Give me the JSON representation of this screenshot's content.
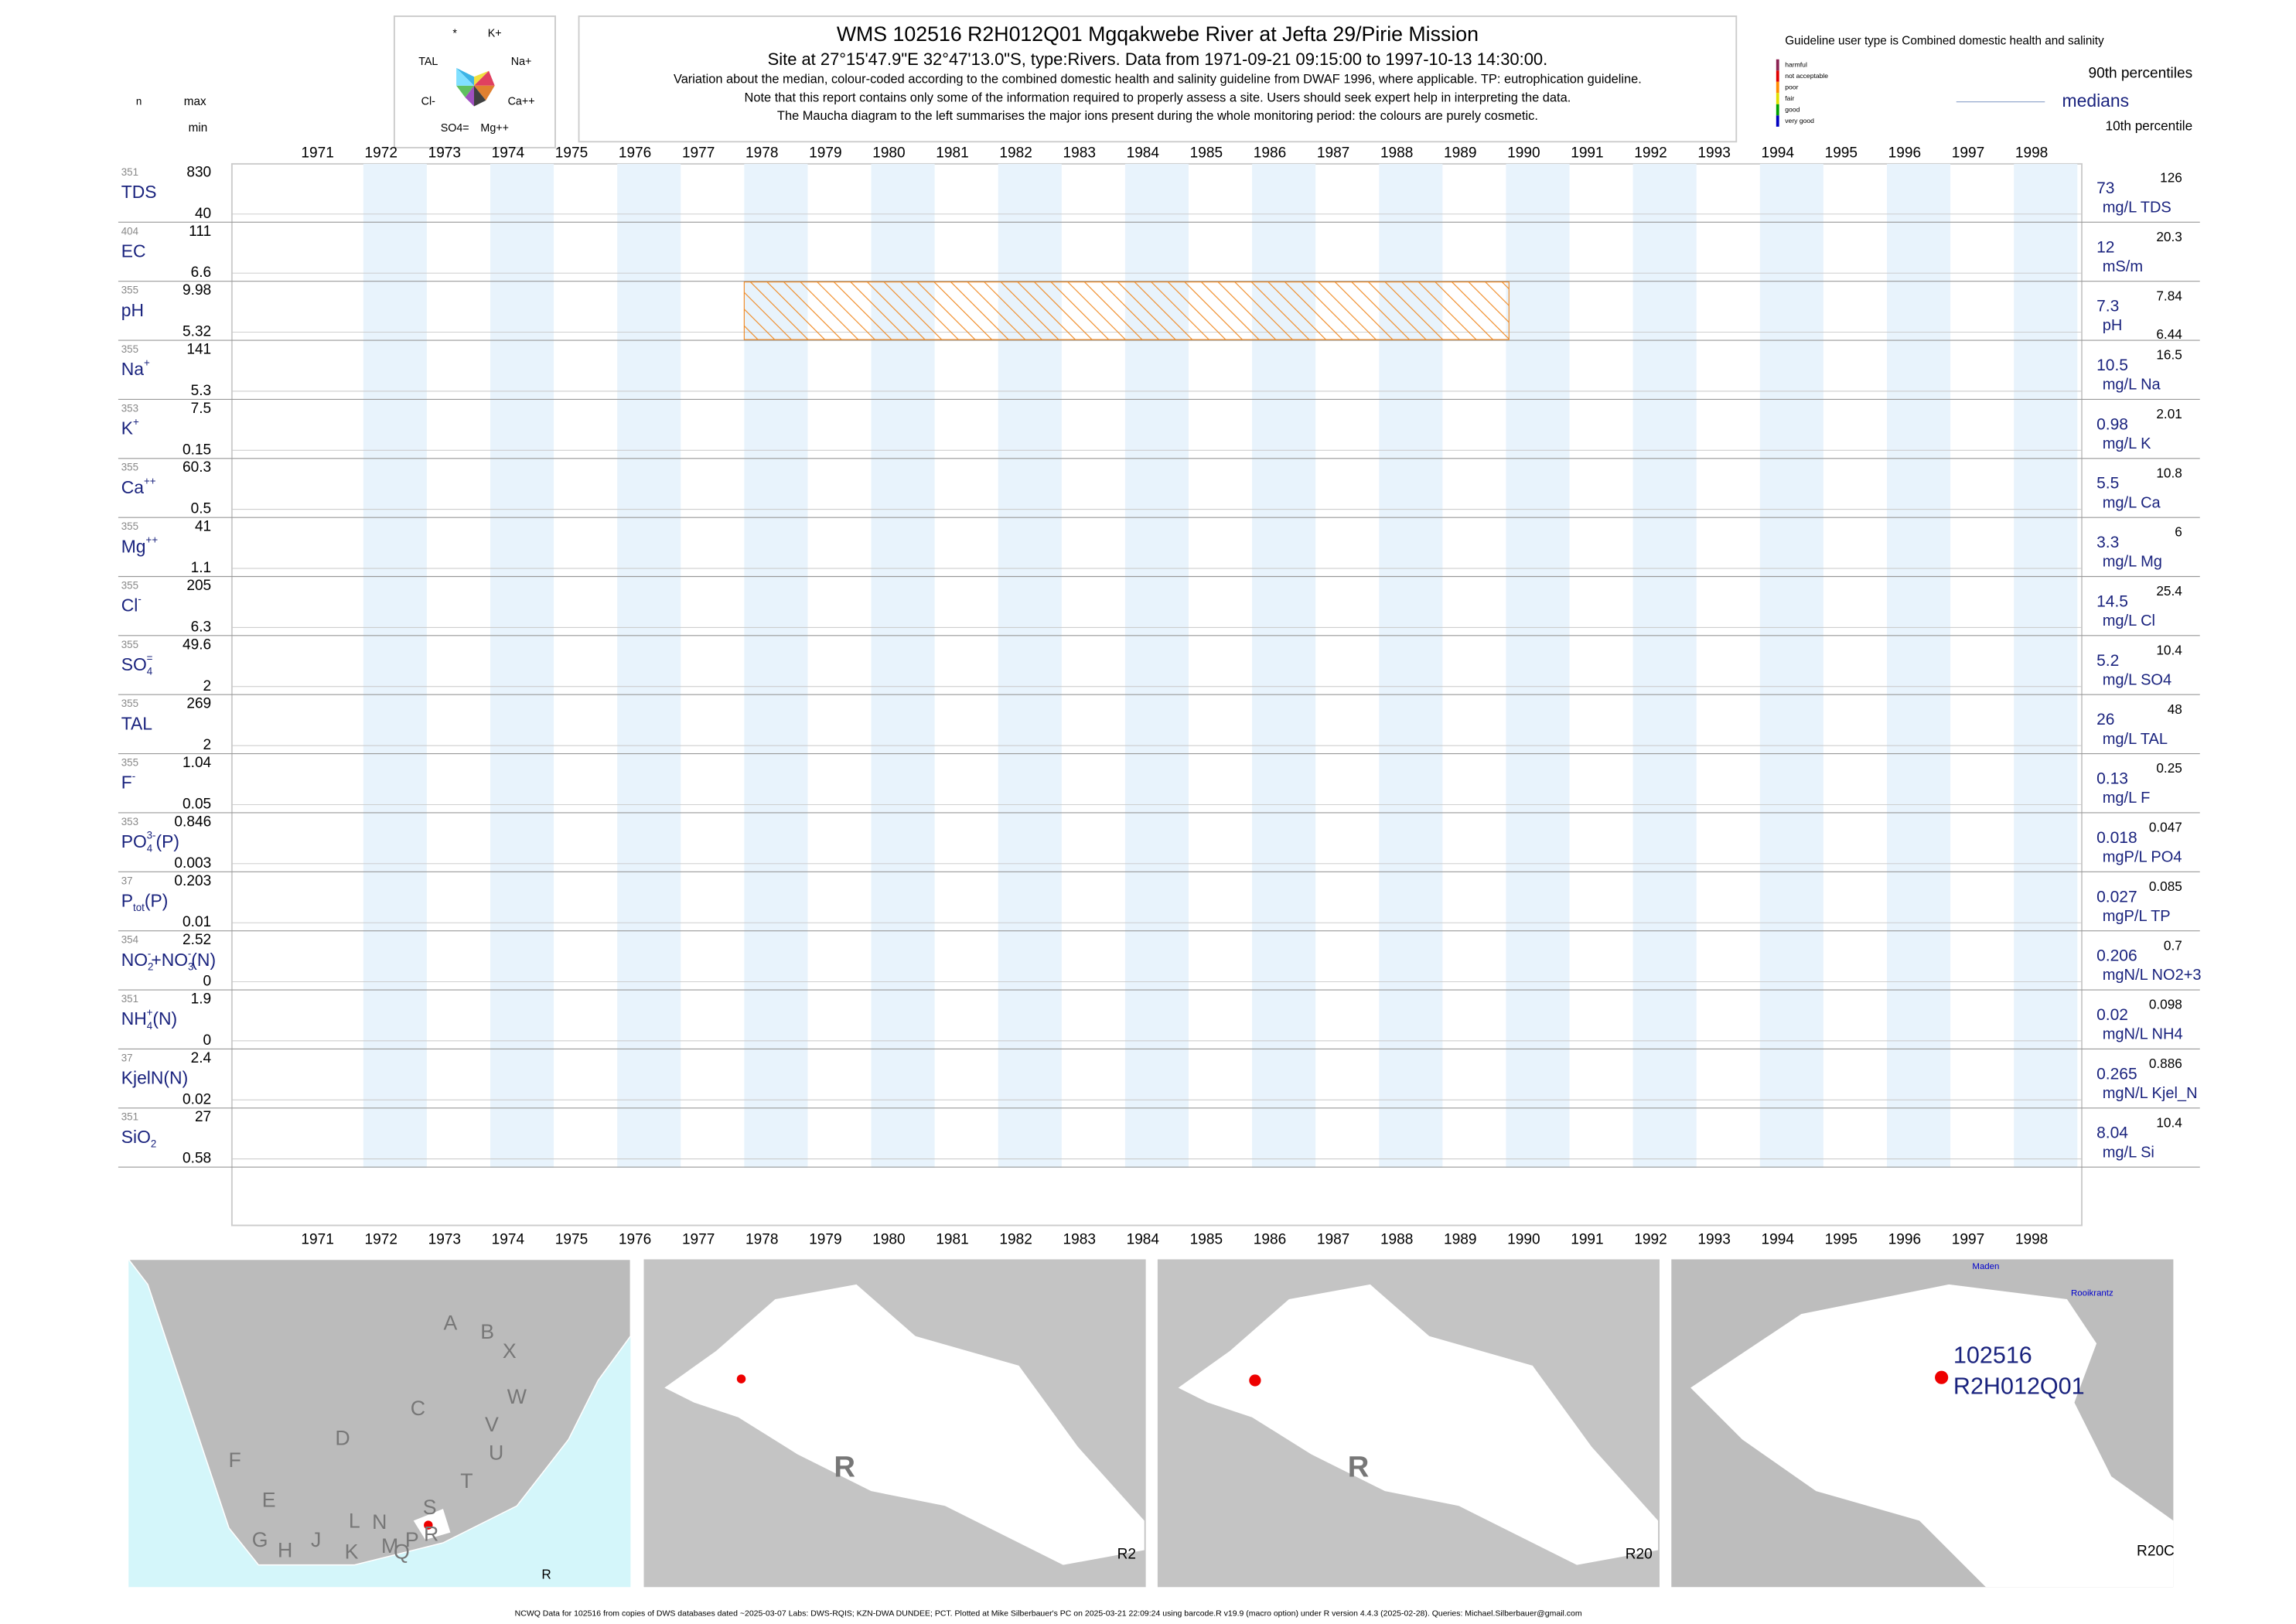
{
  "header": {
    "title": "WMS 102516 R2H012Q01 Mgqakwebe River at Jefta 29/Pirie Mission",
    "subtitle": "Site at 27°15'47.9\"E 32°47'13.0\"S, type:Rivers.  Data from 1971-09-21 09:15:00 to 1997-10-13 14:30:00.",
    "notes": [
      "Variation about the median,  colour-coded according to the combined domestic health and salinity guideline from DWAF 1996, where applicable. TP: eutrophication guideline.",
      "Note that this report contains only some of the information required to properly assess a site. Users should seek expert help in interpreting the data.",
      "The Maucha diagram to the left summarises the major ions present during the whole monitoring period: the colours are purely cosmetic."
    ]
  },
  "column_heads": {
    "n": "n",
    "max": "max",
    "min": "min"
  },
  "maucha": [
    "*",
    "K+",
    "TAL",
    "Na+",
    "Cl-",
    "Ca++",
    "SO4=",
    "Mg++"
  ],
  "legend": {
    "guideline": "Guideline user type is Combined domestic health and salinity",
    "classes": [
      {
        "name": "harmful",
        "color": "#8b2252"
      },
      {
        "name": "not acceptable",
        "color": "#e00000"
      },
      {
        "name": "poor",
        "color": "#ff8c00"
      },
      {
        "name": "fair",
        "color": "#e0e000"
      },
      {
        "name": "good",
        "color": "#00a000"
      },
      {
        "name": "very good",
        "color": "#0000c0"
      }
    ],
    "p90": "90th percentiles",
    "median": "medians",
    "p10": "10th percentile"
  },
  "years": [
    "1971",
    "1972",
    "1973",
    "1974",
    "1975",
    "1976",
    "1977",
    "1978",
    "1979",
    "1980",
    "1981",
    "1982",
    "1983",
    "1984",
    "1985",
    "1986",
    "1987",
    "1988",
    "1989",
    "1990",
    "1991",
    "1992",
    "1993",
    "1994",
    "1995",
    "1996",
    "1997",
    "1998"
  ],
  "panels": [
    {
      "label": [
        {
          "t": "TDS"
        }
      ],
      "n": 351,
      "max": 830,
      "min": 40,
      "median": 73,
      "p90": 126,
      "unit": "mg/L TDS"
    },
    {
      "label": [
        {
          "t": "EC"
        }
      ],
      "n": 404,
      "max": 111,
      "min": 6.6,
      "median": 12,
      "p90": 20.3,
      "unit": "mS/m"
    },
    {
      "label": [
        {
          "t": "pH"
        }
      ],
      "n": 355,
      "max": 9.98,
      "min": 5.32,
      "median": 7.3,
      "p90": 7.84,
      "unit": "pH",
      "p10": 6.44
    },
    {
      "label": [
        {
          "t": "Na"
        },
        {
          "t": "+",
          "sup": true
        }
      ],
      "n": 355,
      "max": 141,
      "min": 5.3,
      "median": 10.5,
      "p90": 16.5,
      "unit": "mg/L Na"
    },
    {
      "label": [
        {
          "t": "K"
        },
        {
          "t": "+",
          "sup": true
        }
      ],
      "n": 353,
      "max": 7.5,
      "min": 0.15,
      "median": 0.98,
      "p90": 2.01,
      "unit": "mg/L K"
    },
    {
      "label": [
        {
          "t": "Ca"
        },
        {
          "t": "++",
          "sup": true
        }
      ],
      "n": 355,
      "max": 60.3,
      "min": 0.5,
      "median": 5.5,
      "p90": 10.8,
      "unit": "mg/L Ca"
    },
    {
      "label": [
        {
          "t": "Mg"
        },
        {
          "t": "++",
          "sup": true
        }
      ],
      "n": 355,
      "max": 41,
      "min": 1.1,
      "median": 3.3,
      "p90": 6,
      "unit": "mg/L Mg"
    },
    {
      "label": [
        {
          "t": "Cl"
        },
        {
          "t": "-",
          "sup": true
        }
      ],
      "n": 355,
      "max": 205,
      "min": 6.3,
      "median": 14.5,
      "p90": 25.4,
      "unit": "mg/L Cl"
    },
    {
      "label": [
        {
          "t": "SO"
        },
        {
          "t": "4",
          "sub": true
        },
        {
          "t": "=",
          "sup": true
        }
      ],
      "n": 355,
      "max": 49.6,
      "min": 2,
      "median": 5.2,
      "p90": 10.4,
      "unit": "mg/L SO4"
    },
    {
      "label": [
        {
          "t": "TAL"
        }
      ],
      "n": 355,
      "max": 269,
      "min": 2,
      "median": 26,
      "p90": 48,
      "unit": "mg/L TAL"
    },
    {
      "label": [
        {
          "t": "F"
        },
        {
          "t": "-",
          "sup": true
        }
      ],
      "n": 355,
      "max": 1.04,
      "min": 0.05,
      "median": 0.13,
      "p90": 0.25,
      "unit": "mg/L F"
    },
    {
      "label": [
        {
          "t": "PO"
        },
        {
          "t": "4",
          "sub": true
        },
        {
          "t": "3-",
          "sup": true
        },
        {
          "t": "(P)"
        }
      ],
      "n": 353,
      "max": 0.846,
      "min": 0.003,
      "median": 0.018,
      "p90": 0.047,
      "unit": "mgP/L PO4"
    },
    {
      "label": [
        {
          "t": "P"
        },
        {
          "t": "tot",
          "sub": true
        },
        {
          "t": "(P)"
        }
      ],
      "n": 37,
      "max": 0.203,
      "min": 0.01,
      "median": 0.027,
      "p90": 0.085,
      "unit": "mgP/L TP"
    },
    {
      "label": [
        {
          "t": "NO"
        },
        {
          "t": "2",
          "sub": true
        },
        {
          "t": "-",
          "sup": true
        },
        {
          "t": "+NO"
        },
        {
          "t": "3",
          "sub": true
        },
        {
          "t": "-",
          "sup": true
        },
        {
          "t": "(N)"
        }
      ],
      "n": 354,
      "max": 2.52,
      "min": 0,
      "median": 0.206,
      "p90": 0.7,
      "unit": "mgN/L NO2+3"
    },
    {
      "label": [
        {
          "t": "NH"
        },
        {
          "t": "4",
          "sub": true
        },
        {
          "t": "+",
          "sup": true
        },
        {
          "t": "(N)"
        }
      ],
      "n": 351,
      "max": 1.9,
      "min": 0,
      "median": 0.02,
      "p90": 0.098,
      "unit": "mgN/L NH4"
    },
    {
      "label": [
        {
          "t": "KjelN(N)"
        }
      ],
      "n": 37,
      "max": 2.4,
      "min": 0.02,
      "median": 0.265,
      "p90": 0.886,
      "unit": "mgN/L Kjel_N"
    },
    {
      "label": [
        {
          "t": "SiO"
        },
        {
          "t": "2",
          "sub": true
        }
      ],
      "n": 351,
      "max": 27,
      "min": 0.58,
      "median": 8.04,
      "p90": 10.4,
      "unit": "mg/L Si"
    }
  ],
  "maps": {
    "regions": [
      "A",
      "B",
      "X",
      "C",
      "W",
      "V",
      "D",
      "U",
      "F",
      "T",
      "E",
      "S",
      "G",
      "H",
      "J",
      "L",
      "N",
      "Q",
      "K",
      "M",
      "P",
      "R"
    ],
    "region_code": "R",
    "catchment_label": "R",
    "secondary": "R2",
    "catchment2_label": "R",
    "tertiary": "R20",
    "places": [
      "Maden",
      "Rooikrantz"
    ],
    "site_id": "102516",
    "site_code": "R2H012Q01",
    "quaternary": "R20C"
  },
  "footer": "NCWQ Data for 102516 from copies of DWS databases dated ~2025-03-07 Labs: DWS-RQIS; KZN-DWA DUNDEE; PCT. Plotted at Mike Silberbauer's PC on 2025-03-21 22:09:24 using barcode.R v19.9 (macro option) under R version 4.4.3 (2025-02-28). Queries: Michael.Silberbauer@gmail.com"
}
